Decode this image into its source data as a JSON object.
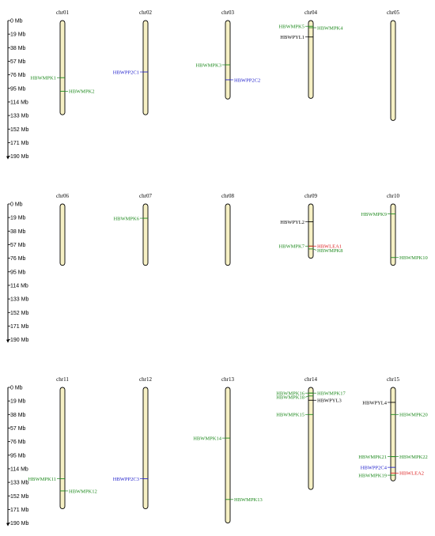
{
  "axis_ticks": [
    "0 Mb",
    "19 Mb",
    "38 Mb",
    "57 Mb",
    "76 Mb",
    "95 Mb",
    "114 Mb",
    "133 Mb",
    "152 Mb",
    "171 Mb",
    "190 Mb"
  ],
  "colors": {
    "chromosome_fill": "#f6f0c4",
    "chromosome_stroke": "#000000",
    "green": "#1f8a1f",
    "blue": "#2222cc",
    "red": "#dd2222",
    "black": "#000000"
  },
  "panels": [
    {
      "chromosomes": [
        {
          "name": "chr01",
          "length": 132,
          "genes": [
            {
              "label": "HBWMPK1",
              "pos": 80,
              "side": "left",
              "color": "green"
            },
            {
              "label": "HBWMPK2",
              "pos": 99,
              "side": "right",
              "color": "green"
            }
          ]
        },
        {
          "name": "chr02",
          "length": 132,
          "genes": [
            {
              "label": "HBWPP2C1",
              "pos": 72,
              "side": "left",
              "color": "blue"
            }
          ]
        },
        {
          "name": "chr03",
          "length": 110,
          "genes": [
            {
              "label": "HBWMPK3",
              "pos": 62,
              "side": "left",
              "color": "green"
            },
            {
              "label": "HBWPP2C2",
              "pos": 83,
              "side": "right",
              "color": "blue"
            }
          ]
        },
        {
          "name": "chr04",
          "length": 109,
          "genes": [
            {
              "label": "HBWMPK5",
              "pos": 8,
              "side": "left",
              "color": "green"
            },
            {
              "label": "HBWMPK4",
              "pos": 10,
              "side": "right",
              "color": "green"
            },
            {
              "label": "HBWPYL1",
              "pos": 23,
              "side": "left",
              "color": "black"
            }
          ]
        },
        {
          "name": "chr05",
          "length": 140,
          "genes": []
        }
      ]
    },
    {
      "chromosomes": [
        {
          "name": "chr06",
          "length": 86,
          "genes": []
        },
        {
          "name": "chr07",
          "length": 86,
          "genes": [
            {
              "label": "HBWMPK6",
              "pos": 20,
              "side": "left",
              "color": "green"
            }
          ]
        },
        {
          "name": "chr08",
          "length": 86,
          "genes": []
        },
        {
          "name": "chr09",
          "length": 76,
          "genes": [
            {
              "label": "HBWPYL2",
              "pos": 25,
              "side": "left",
              "color": "black"
            },
            {
              "label": "HBWMPK7",
              "pos": 59,
              "side": "left",
              "color": "green"
            },
            {
              "label": "HBWLEA1",
              "pos": 59,
              "side": "right",
              "color": "red"
            },
            {
              "label": "HBWMPK8",
              "pos": 63,
              "side": "right",
              "color": "green"
            }
          ]
        },
        {
          "name": "chr10",
          "length": 86,
          "genes": [
            {
              "label": "HBWMPK9",
              "pos": 14,
              "side": "left",
              "color": "green"
            },
            {
              "label": "HBWMPK10",
              "pos": 75,
              "side": "right",
              "color": "green"
            }
          ]
        }
      ]
    },
    {
      "chromosomes": [
        {
          "name": "chr11",
          "length": 170,
          "genes": [
            {
              "label": "HBWMPK11",
              "pos": 128,
              "side": "left",
              "color": "green"
            },
            {
              "label": "HBWMPK12",
              "pos": 145,
              "side": "right",
              "color": "green"
            }
          ]
        },
        {
          "name": "chr12",
          "length": 170,
          "genes": [
            {
              "label": "HBWPP2C3",
              "pos": 128,
              "side": "left",
              "color": "blue"
            }
          ]
        },
        {
          "name": "chr13",
          "length": 190,
          "genes": [
            {
              "label": "HBWMPK14",
              "pos": 71,
              "side": "left",
              "color": "green"
            },
            {
              "label": "HBWMPK13",
              "pos": 157,
              "side": "right",
              "color": "green"
            }
          ]
        },
        {
          "name": "chr14",
          "length": 143,
          "genes": [
            {
              "label": "HBWMPK16",
              "pos": 8,
              "side": "left",
              "color": "green"
            },
            {
              "label": "HBWMPK17",
              "pos": 8,
              "side": "right",
              "color": "green"
            },
            {
              "label": "HBWMPK18",
              "pos": 12,
              "side": "left",
              "color": "green"
            },
            {
              "label": "HBWPYL3",
              "pos": 18,
              "side": "right",
              "color": "black"
            },
            {
              "label": "HBWMPK15",
              "pos": 38,
              "side": "left",
              "color": "green"
            }
          ]
        },
        {
          "name": "chr15",
          "length": 131,
          "genes": [
            {
              "label": "HBWPYL4",
              "pos": 21,
              "side": "left",
              "color": "black"
            },
            {
              "label": "HBWMPK20",
              "pos": 38,
              "side": "right",
              "color": "green"
            },
            {
              "label": "HBWMPK21",
              "pos": 97,
              "side": "left",
              "color": "green"
            },
            {
              "label": "HBWMPK22",
              "pos": 97,
              "side": "right",
              "color": "green"
            },
            {
              "label": "HBWPP2C4",
              "pos": 112,
              "side": "left",
              "color": "blue"
            },
            {
              "label": "HBWLEA2",
              "pos": 120,
              "side": "right",
              "color": "red"
            },
            {
              "label": "HBWMPK19",
              "pos": 123,
              "side": "left",
              "color": "green"
            }
          ]
        }
      ]
    }
  ]
}
